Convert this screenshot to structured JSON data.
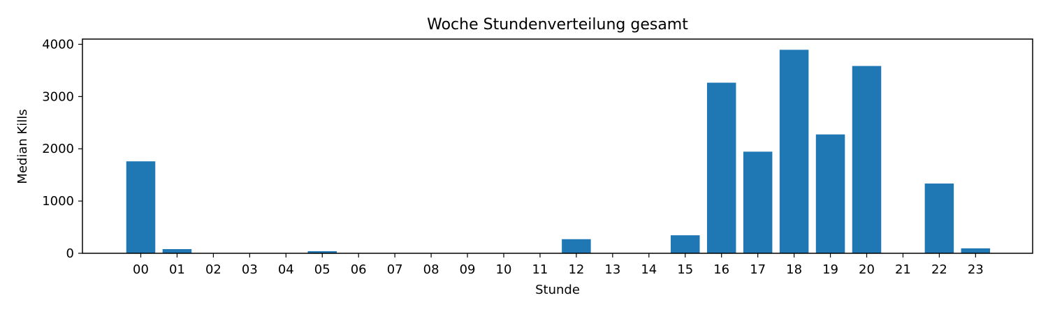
{
  "chart_data": {
    "type": "bar",
    "title": "Woche Stundenverteilung gesamt",
    "xlabel": "Stunde",
    "ylabel": "Median Kills",
    "categories": [
      "00",
      "01",
      "02",
      "03",
      "04",
      "05",
      "06",
      "07",
      "08",
      "09",
      "10",
      "11",
      "12",
      "13",
      "14",
      "15",
      "16",
      "17",
      "18",
      "19",
      "20",
      "21",
      "22",
      "23"
    ],
    "values": [
      1760,
      80,
      0,
      0,
      0,
      40,
      5,
      0,
      0,
      0,
      0,
      0,
      270,
      0,
      0,
      345,
      3265,
      1945,
      3895,
      2275,
      3585,
      0,
      1335,
      95
    ],
    "yticks": [
      0,
      1000,
      2000,
      3000,
      4000
    ],
    "ylim": [
      0,
      4100
    ],
    "bar_color": "#1f77b4",
    "grid": false,
    "legend": "none"
  }
}
